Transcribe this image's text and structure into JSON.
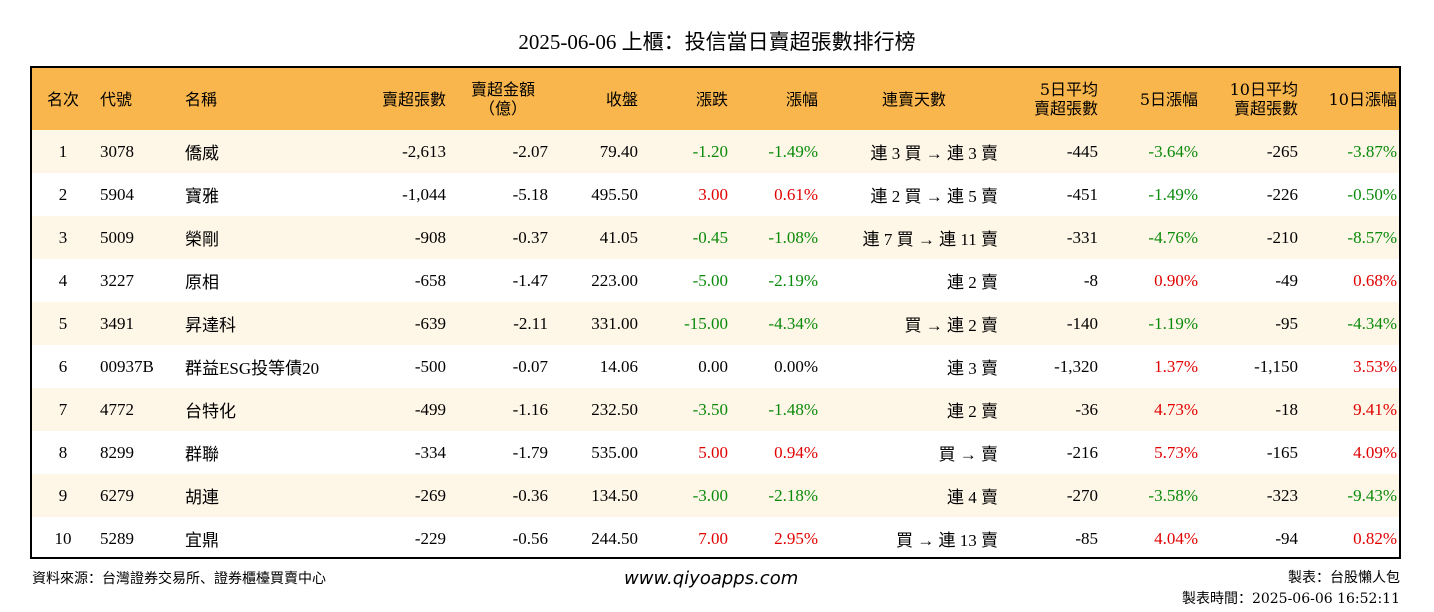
{
  "title": "2025-06-06 上櫃：投信當日賣超張數排行榜",
  "headers": {
    "rank": "名次",
    "code": "代號",
    "name": "名稱",
    "sell_lots": "賣超張數",
    "sell_amount_1": "賣超金額",
    "sell_amount_2": "（億）",
    "close": "收盤",
    "change": "漲跌",
    "change_pct": "漲幅",
    "streak": "連賣天數",
    "avg5_1": "5日平均",
    "avg5_2": "賣超張數",
    "chg5": "5日漲幅",
    "avg10_1": "10日平均",
    "avg10_2": "賣超張數",
    "chg10": "10日漲幅"
  },
  "rows": [
    {
      "rank": "1",
      "code": "3078",
      "name": "僑威",
      "sell_lots": "-2,613",
      "sell_amount": "-2.07",
      "close": "79.40",
      "change": "-1.20",
      "change_color": "green",
      "change_pct": "-1.49%",
      "streak": "連 3 買 → 連 3 賣",
      "avg5": "-445",
      "chg5": "-3.64%",
      "chg5_color": "green",
      "avg10": "-265",
      "chg10": "-3.87%",
      "chg10_color": "green"
    },
    {
      "rank": "2",
      "code": "5904",
      "name": "寶雅",
      "sell_lots": "-1,044",
      "sell_amount": "-5.18",
      "close": "495.50",
      "change": "3.00",
      "change_color": "red",
      "change_pct": "0.61%",
      "streak": "連 2 買 → 連 5 賣",
      "avg5": "-451",
      "chg5": "-1.49%",
      "chg5_color": "green",
      "avg10": "-226",
      "chg10": "-0.50%",
      "chg10_color": "green"
    },
    {
      "rank": "3",
      "code": "5009",
      "name": "榮剛",
      "sell_lots": "-908",
      "sell_amount": "-0.37",
      "close": "41.05",
      "change": "-0.45",
      "change_color": "green",
      "change_pct": "-1.08%",
      "streak": "連 7 買 → 連 11 賣",
      "avg5": "-331",
      "chg5": "-4.76%",
      "chg5_color": "green",
      "avg10": "-210",
      "chg10": "-8.57%",
      "chg10_color": "green"
    },
    {
      "rank": "4",
      "code": "3227",
      "name": "原相",
      "sell_lots": "-658",
      "sell_amount": "-1.47",
      "close": "223.00",
      "change": "-5.00",
      "change_color": "green",
      "change_pct": "-2.19%",
      "streak": "連 2 賣",
      "avg5": "-8",
      "chg5": "0.90%",
      "chg5_color": "red",
      "avg10": "-49",
      "chg10": "0.68%",
      "chg10_color": "red"
    },
    {
      "rank": "5",
      "code": "3491",
      "name": "昇達科",
      "sell_lots": "-639",
      "sell_amount": "-2.11",
      "close": "331.00",
      "change": "-15.00",
      "change_color": "green",
      "change_pct": "-4.34%",
      "streak": "買 → 連 2 賣",
      "avg5": "-140",
      "chg5": "-1.19%",
      "chg5_color": "green",
      "avg10": "-95",
      "chg10": "-4.34%",
      "chg10_color": "green"
    },
    {
      "rank": "6",
      "code": "00937B",
      "name": "群益ESG投等債20",
      "sell_lots": "-500",
      "sell_amount": "-0.07",
      "close": "14.06",
      "change": "0.00",
      "change_color": "black",
      "change_pct": "0.00%",
      "streak": "連 3 賣",
      "avg5": "-1,320",
      "chg5": "1.37%",
      "chg5_color": "red",
      "avg10": "-1,150",
      "chg10": "3.53%",
      "chg10_color": "red"
    },
    {
      "rank": "7",
      "code": "4772",
      "name": "台特化",
      "sell_lots": "-499",
      "sell_amount": "-1.16",
      "close": "232.50",
      "change": "-3.50",
      "change_color": "green",
      "change_pct": "-1.48%",
      "streak": "連 2 賣",
      "avg5": "-36",
      "chg5": "4.73%",
      "chg5_color": "red",
      "avg10": "-18",
      "chg10": "9.41%",
      "chg10_color": "red"
    },
    {
      "rank": "8",
      "code": "8299",
      "name": "群聯",
      "sell_lots": "-334",
      "sell_amount": "-1.79",
      "close": "535.00",
      "change": "5.00",
      "change_color": "red",
      "change_pct": "0.94%",
      "streak": "買 → 賣",
      "avg5": "-216",
      "chg5": "5.73%",
      "chg5_color": "red",
      "avg10": "-165",
      "chg10": "4.09%",
      "chg10_color": "red"
    },
    {
      "rank": "9",
      "code": "6279",
      "name": "胡連",
      "sell_lots": "-269",
      "sell_amount": "-0.36",
      "close": "134.50",
      "change": "-3.00",
      "change_color": "green",
      "change_pct": "-2.18%",
      "streak": "連 4 賣",
      "avg5": "-270",
      "chg5": "-3.58%",
      "chg5_color": "green",
      "avg10": "-323",
      "chg10": "-9.43%",
      "chg10_color": "green"
    },
    {
      "rank": "10",
      "code": "5289",
      "name": "宜鼎",
      "sell_lots": "-229",
      "sell_amount": "-0.56",
      "close": "244.50",
      "change": "7.00",
      "change_color": "red",
      "change_pct": "2.95%",
      "streak": "買 → 連 13 賣",
      "avg5": "-85",
      "chg5": "4.04%",
      "chg5_color": "red",
      "avg10": "-94",
      "chg10": "0.82%",
      "chg10_color": "red"
    }
  ],
  "footer": {
    "source": "資料來源：台灣證券交易所、證券櫃檯買賣中心",
    "website": "www.qiyoapps.com",
    "maker": "製表：台股懶人包",
    "made_time": "製表時間：2025-06-06 16:52:11"
  },
  "colors": {
    "header_bg": "#f8b64c",
    "alt_row_bg": "#fef6e6",
    "up": "#e00000",
    "down": "#0a8a0a"
  }
}
